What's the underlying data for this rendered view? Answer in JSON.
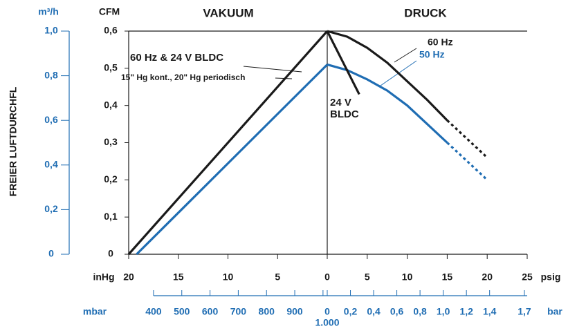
{
  "chart_data": {
    "type": "line",
    "vacuum_title": "VAKUUM",
    "pressure_title": "DRUCK",
    "ylabel": "FREIER LUFTDURCHFL",
    "y_unit": "CFM",
    "ylim": [
      0,
      0.6
    ],
    "yticks": [
      0,
      {
        "value": 0.1,
        "label": "0,1"
      },
      {
        "value": 0.2,
        "label": "0,2"
      },
      {
        "value": 0.3,
        "label": "0,3"
      },
      {
        "value": 0.4,
        "label": "0,4"
      },
      {
        "value": 0.5,
        "label": "0,5"
      },
      {
        "value": 0.6,
        "label": "0,6"
      }
    ],
    "y2_unit": "m³/h",
    "y2lim": [
      0,
      1.0
    ],
    "y2ticks": [
      0,
      {
        "value": 0.2,
        "label": "0,2"
      },
      {
        "value": 0.4,
        "label": "0,4"
      },
      {
        "value": 0.6,
        "label": "0,6"
      },
      {
        "value": 0.8,
        "label": "0,8"
      },
      {
        "value": 1.0,
        "label": "1,0"
      }
    ],
    "x_vacuum": {
      "unit": "inHg",
      "lim": [
        20,
        0
      ],
      "ticks": [
        20,
        15,
        10,
        5
      ]
    },
    "x_pressure": {
      "unit": "psig",
      "lim": [
        0,
        25
      ],
      "ticks": [
        0,
        5,
        10,
        15,
        20,
        25
      ]
    },
    "x_mbar": {
      "unit": "mbar",
      "lim": [
        312,
        1015
      ],
      "ticks": [
        400,
        500,
        600,
        700,
        800,
        900,
        {
          "value": 1000,
          "label": "1.000"
        }
      ]
    },
    "x_bar": {
      "unit": "bar",
      "lim": [
        0,
        1.724
      ],
      "ticks": [
        0,
        {
          "value": 0.2,
          "label": "0,2"
        },
        {
          "value": 0.4,
          "label": "0,4"
        },
        {
          "value": 0.6,
          "label": "0,6"
        },
        {
          "value": 0.8,
          "label": "0,8"
        },
        {
          "value": 1.0,
          "label": "1,0"
        },
        {
          "value": 1.2,
          "label": "1,2"
        },
        {
          "value": 1.4,
          "label": "1,4"
        },
        {
          "value": 1.7,
          "label": "1,7"
        }
      ]
    },
    "annotations": [
      "60 Hz & 24 V BLDC",
      "15\" Hg kont., 20\" Hg periodisch"
    ],
    "series": [
      {
        "name": "60 Hz",
        "color": "#1a1a1a",
        "dashed_from": 15,
        "vacuum": {
          "x": [
            20,
            0
          ],
          "values": [
            0,
            0.6
          ]
        },
        "pressure": {
          "x": [
            0,
            2.5,
            5,
            7.5,
            10,
            12.5,
            15,
            20
          ],
          "values": [
            0.6,
            0.585,
            0.555,
            0.515,
            0.465,
            0.415,
            0.36,
            0.26
          ]
        }
      },
      {
        "name": "50 Hz",
        "color": "#1f6db3",
        "dashed_from": 15,
        "vacuum": {
          "x": [
            19.2,
            0
          ],
          "values": [
            0,
            0.51
          ]
        },
        "pressure": {
          "x": [
            0,
            2.5,
            5,
            7.5,
            10,
            12.5,
            15,
            20
          ],
          "values": [
            0.51,
            0.495,
            0.47,
            0.44,
            0.4,
            0.35,
            0.3,
            0.2
          ]
        }
      },
      {
        "name": "24 V BLDC",
        "color": "#1a1a1a",
        "pressure": {
          "x": [
            0,
            4
          ],
          "values": [
            0.6,
            0.43
          ]
        }
      }
    ]
  }
}
